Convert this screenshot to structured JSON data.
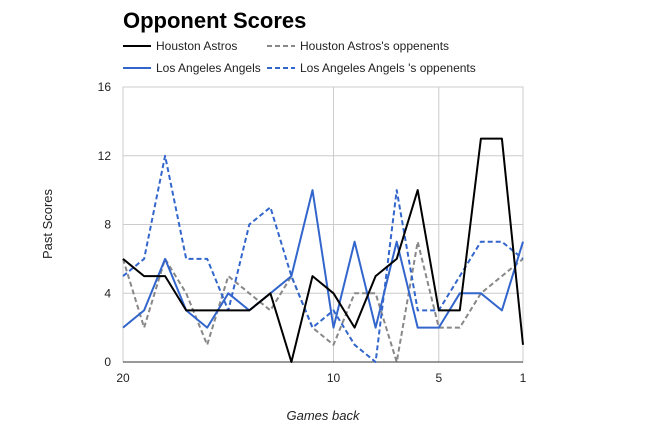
{
  "chart_data": {
    "type": "line",
    "title": "Opponent Scores",
    "xlabel": "Games back",
    "ylabel": "Past Scores",
    "x": [
      20,
      19,
      18,
      17,
      16,
      15,
      14,
      13,
      12,
      11,
      10,
      9,
      8,
      7,
      6,
      5,
      4,
      3,
      2,
      1
    ],
    "xlim": [
      20,
      1
    ],
    "xticks": [
      20,
      10,
      5,
      1
    ],
    "ylim": [
      0,
      16
    ],
    "yticks": [
      0,
      4,
      8,
      12,
      16
    ],
    "grid": true,
    "legend_position": "top",
    "series": [
      {
        "name": "Houston Astros",
        "color": "#000000",
        "style": "solid",
        "values": [
          6,
          5,
          5,
          3,
          3,
          3,
          3,
          4,
          0,
          5,
          4,
          2,
          5,
          6,
          10,
          3,
          3,
          13,
          13,
          1
        ]
      },
      {
        "name": "Houston Astros's oppenents",
        "color": "#888888",
        "style": "dashed",
        "values": [
          6,
          2,
          6,
          4,
          1,
          5,
          4,
          3,
          5,
          2,
          1,
          4,
          4,
          0,
          7,
          2,
          2,
          4,
          5,
          6
        ]
      },
      {
        "name": "Los Angeles Angels",
        "color": "#3366cc",
        "style": "solid",
        "values": [
          2,
          3,
          6,
          3,
          2,
          4,
          3,
          4,
          5,
          10,
          2,
          7,
          2,
          7,
          2,
          2,
          4,
          4,
          3,
          7
        ]
      },
      {
        "name": "Los Angeles Angels 's oppenents",
        "color": "#3366cc",
        "style": "dashed",
        "values": [
          5,
          6,
          12,
          6,
          6,
          3,
          8,
          9,
          5,
          2,
          3,
          1,
          0,
          10,
          3,
          3,
          5,
          7,
          7,
          6
        ]
      }
    ]
  }
}
